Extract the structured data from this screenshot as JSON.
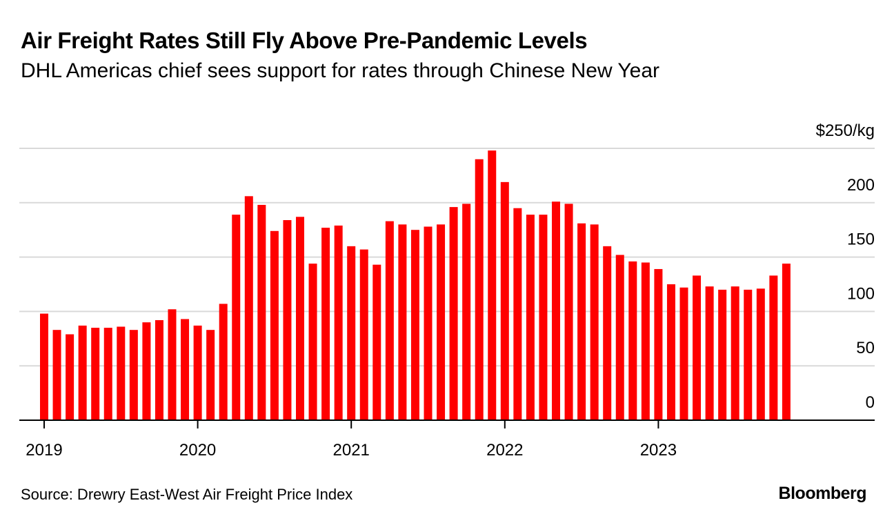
{
  "header": {
    "title": "Air Freight Rates Still Fly Above Pre-Pandemic Levels",
    "subtitle": "DHL Americas chief sees support for rates through Chinese New Year"
  },
  "footer": {
    "source": "Source: Drewry East-West Air Freight Price Index",
    "brand": "Bloomberg"
  },
  "colors": {
    "bar": "#ff0000",
    "grid": "#d9d9d9",
    "axis": "#000000",
    "text": "#000000"
  },
  "chart_data": {
    "type": "bar",
    "title": "Air Freight Rates Still Fly Above Pre-Pandemic Levels",
    "subtitle": "DHL Americas chief sees support for rates through Chinese New Year",
    "xlabel": "",
    "ylabel": "",
    "y_unit_label": "$250/kg",
    "ylim": [
      0,
      250
    ],
    "yticks": [
      0,
      50,
      100,
      150,
      200,
      250
    ],
    "ytick_labels": [
      "0",
      "50",
      "100",
      "150",
      "200",
      "$250/kg"
    ],
    "grid": true,
    "legend": "none",
    "x_tick_labels": [
      "2019",
      "2020",
      "2021",
      "2022",
      "2023"
    ],
    "categories": [
      "2019-01",
      "2019-02",
      "2019-03",
      "2019-04",
      "2019-05",
      "2019-06",
      "2019-07",
      "2019-08",
      "2019-09",
      "2019-10",
      "2019-11",
      "2019-12",
      "2020-01",
      "2020-02",
      "2020-03",
      "2020-04",
      "2020-05",
      "2020-06",
      "2020-07",
      "2020-08",
      "2020-09",
      "2020-10",
      "2020-11",
      "2020-12",
      "2021-01",
      "2021-02",
      "2021-03",
      "2021-04",
      "2021-05",
      "2021-06",
      "2021-07",
      "2021-08",
      "2021-09",
      "2021-10",
      "2021-11",
      "2021-12",
      "2022-01",
      "2022-02",
      "2022-03",
      "2022-04",
      "2022-05",
      "2022-06",
      "2022-07",
      "2022-08",
      "2022-09",
      "2022-10",
      "2022-11",
      "2022-12",
      "2023-01",
      "2023-02",
      "2023-03",
      "2023-04",
      "2023-05",
      "2023-06",
      "2023-07",
      "2023-08",
      "2023-09",
      "2023-10",
      "2023-11"
    ],
    "values": [
      98,
      83,
      79,
      87,
      85,
      85,
      86,
      83,
      90,
      92,
      102,
      93,
      87,
      83,
      107,
      189,
      206,
      198,
      174,
      184,
      187,
      144,
      177,
      179,
      160,
      157,
      143,
      183,
      180,
      175,
      178,
      180,
      196,
      199,
      240,
      248,
      219,
      195,
      189,
      189,
      201,
      199,
      181,
      180,
      160,
      152,
      146,
      145,
      139,
      125,
      122,
      133,
      123,
      120,
      123,
      120,
      121,
      133,
      144
    ]
  }
}
